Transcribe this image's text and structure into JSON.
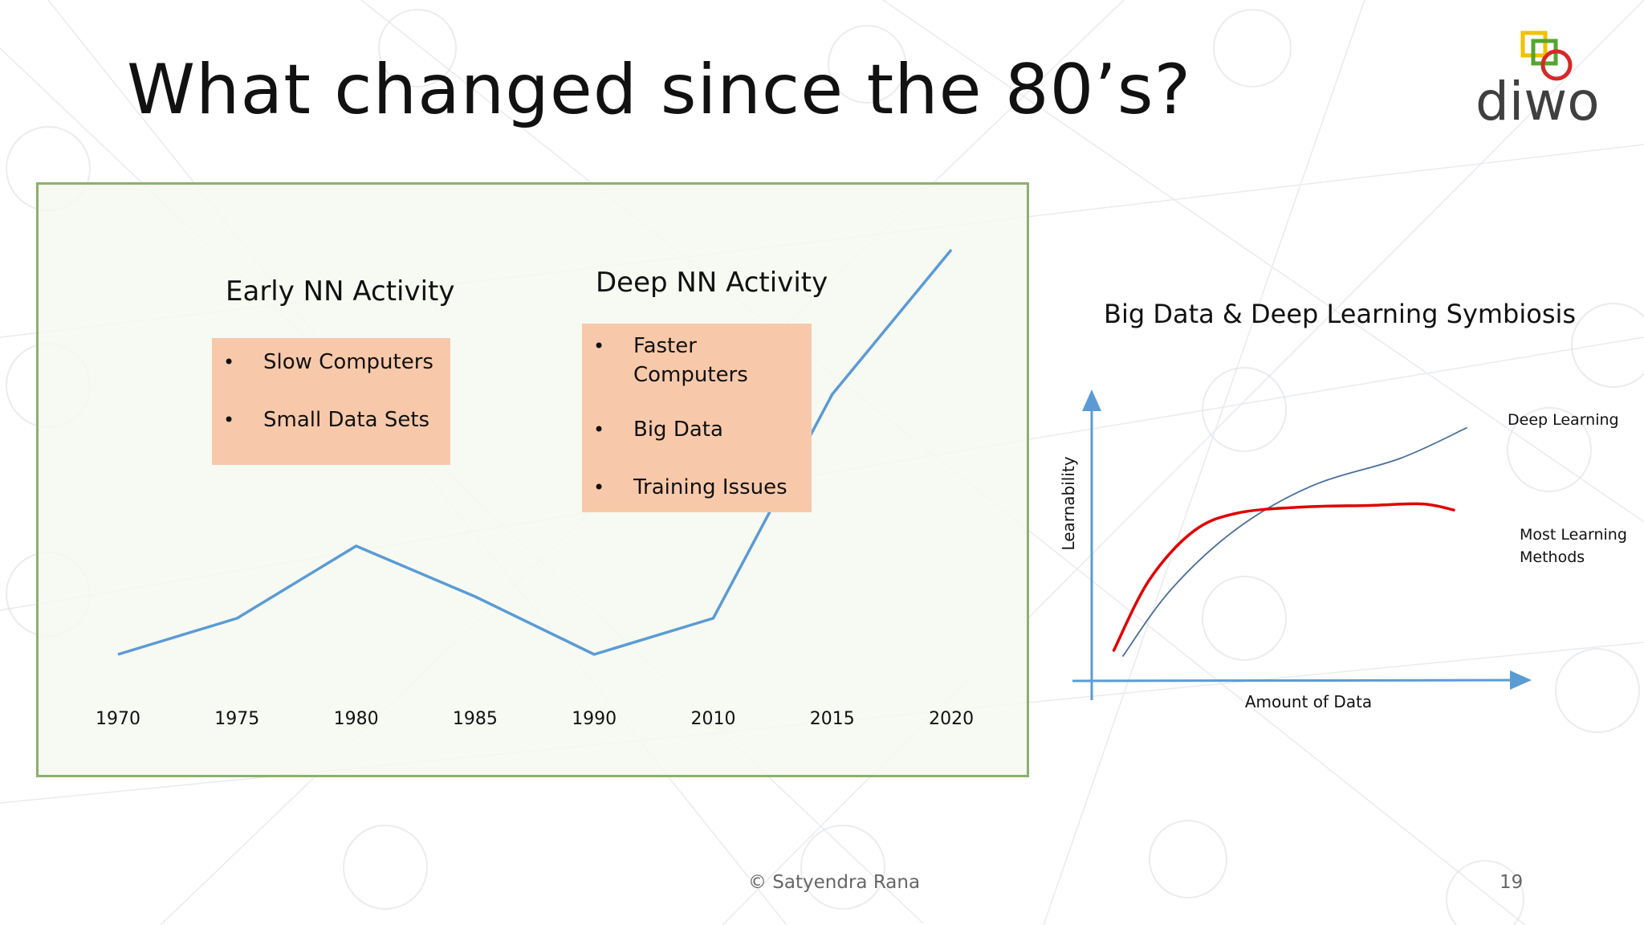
{
  "slide": {
    "title": "What changed since the 80’s?",
    "logo_text": "diwo",
    "footer_credit": "© Satyendra Rana",
    "page_number": "19"
  },
  "colors": {
    "timeline_line": "#5b9bd5",
    "panel_border": "#8bb070",
    "box_fill": "#f7c9aa",
    "deep_learning_line": "#4a6f9c",
    "most_learning_line": "#e00000",
    "axis": "#5b9bd5",
    "logo_yellow": "#f2c200",
    "logo_green": "#55a630",
    "logo_red": "#d62828"
  },
  "early_nn": {
    "label": "Early NN Activity",
    "bullets": [
      "Slow Computers",
      "Small Data Sets"
    ]
  },
  "deep_nn": {
    "label": "Deep NN Activity",
    "bullets": [
      "Faster Computers",
      "Big Data",
      "Training Issues"
    ]
  },
  "symbiosis": {
    "title": "Big Data & Deep Learning Symbiosis"
  },
  "chart_data": [
    {
      "type": "line",
      "title": "",
      "categories": [
        "1970",
        "1975",
        "1980",
        "1985",
        "1990",
        "2010",
        "2015",
        "2020"
      ],
      "series": [
        {
          "values": [
            3,
            4,
            6,
            4.6,
            3,
            4,
            10.2,
            14.2
          ]
        }
      ],
      "xlabel": "",
      "ylabel": "",
      "ylim": [
        0,
        16
      ],
      "grid": false,
      "legend": "none"
    },
    {
      "type": "line",
      "title": "Big Data & Deep Learning Symbiosis",
      "xlabel": "Amount of Data",
      "ylabel": "Learnability",
      "xlim": [
        0,
        10
      ],
      "ylim": [
        0,
        10
      ],
      "grid": false,
      "series": [
        {
          "name": "Deep Learning",
          "x": [
            0.7,
            1.8,
            3.3,
            5.0,
            7.0,
            8.5
          ],
          "y": [
            0.8,
            3.0,
            5.0,
            6.4,
            7.3,
            8.3
          ]
        },
        {
          "name": "Most Learning Methods",
          "x": [
            0.5,
            1.3,
            2.3,
            3.3,
            4.8,
            6.3,
            7.5,
            8.2
          ],
          "y": [
            1.0,
            3.3,
            4.9,
            5.5,
            5.7,
            5.75,
            5.8,
            5.6
          ]
        }
      ]
    }
  ]
}
